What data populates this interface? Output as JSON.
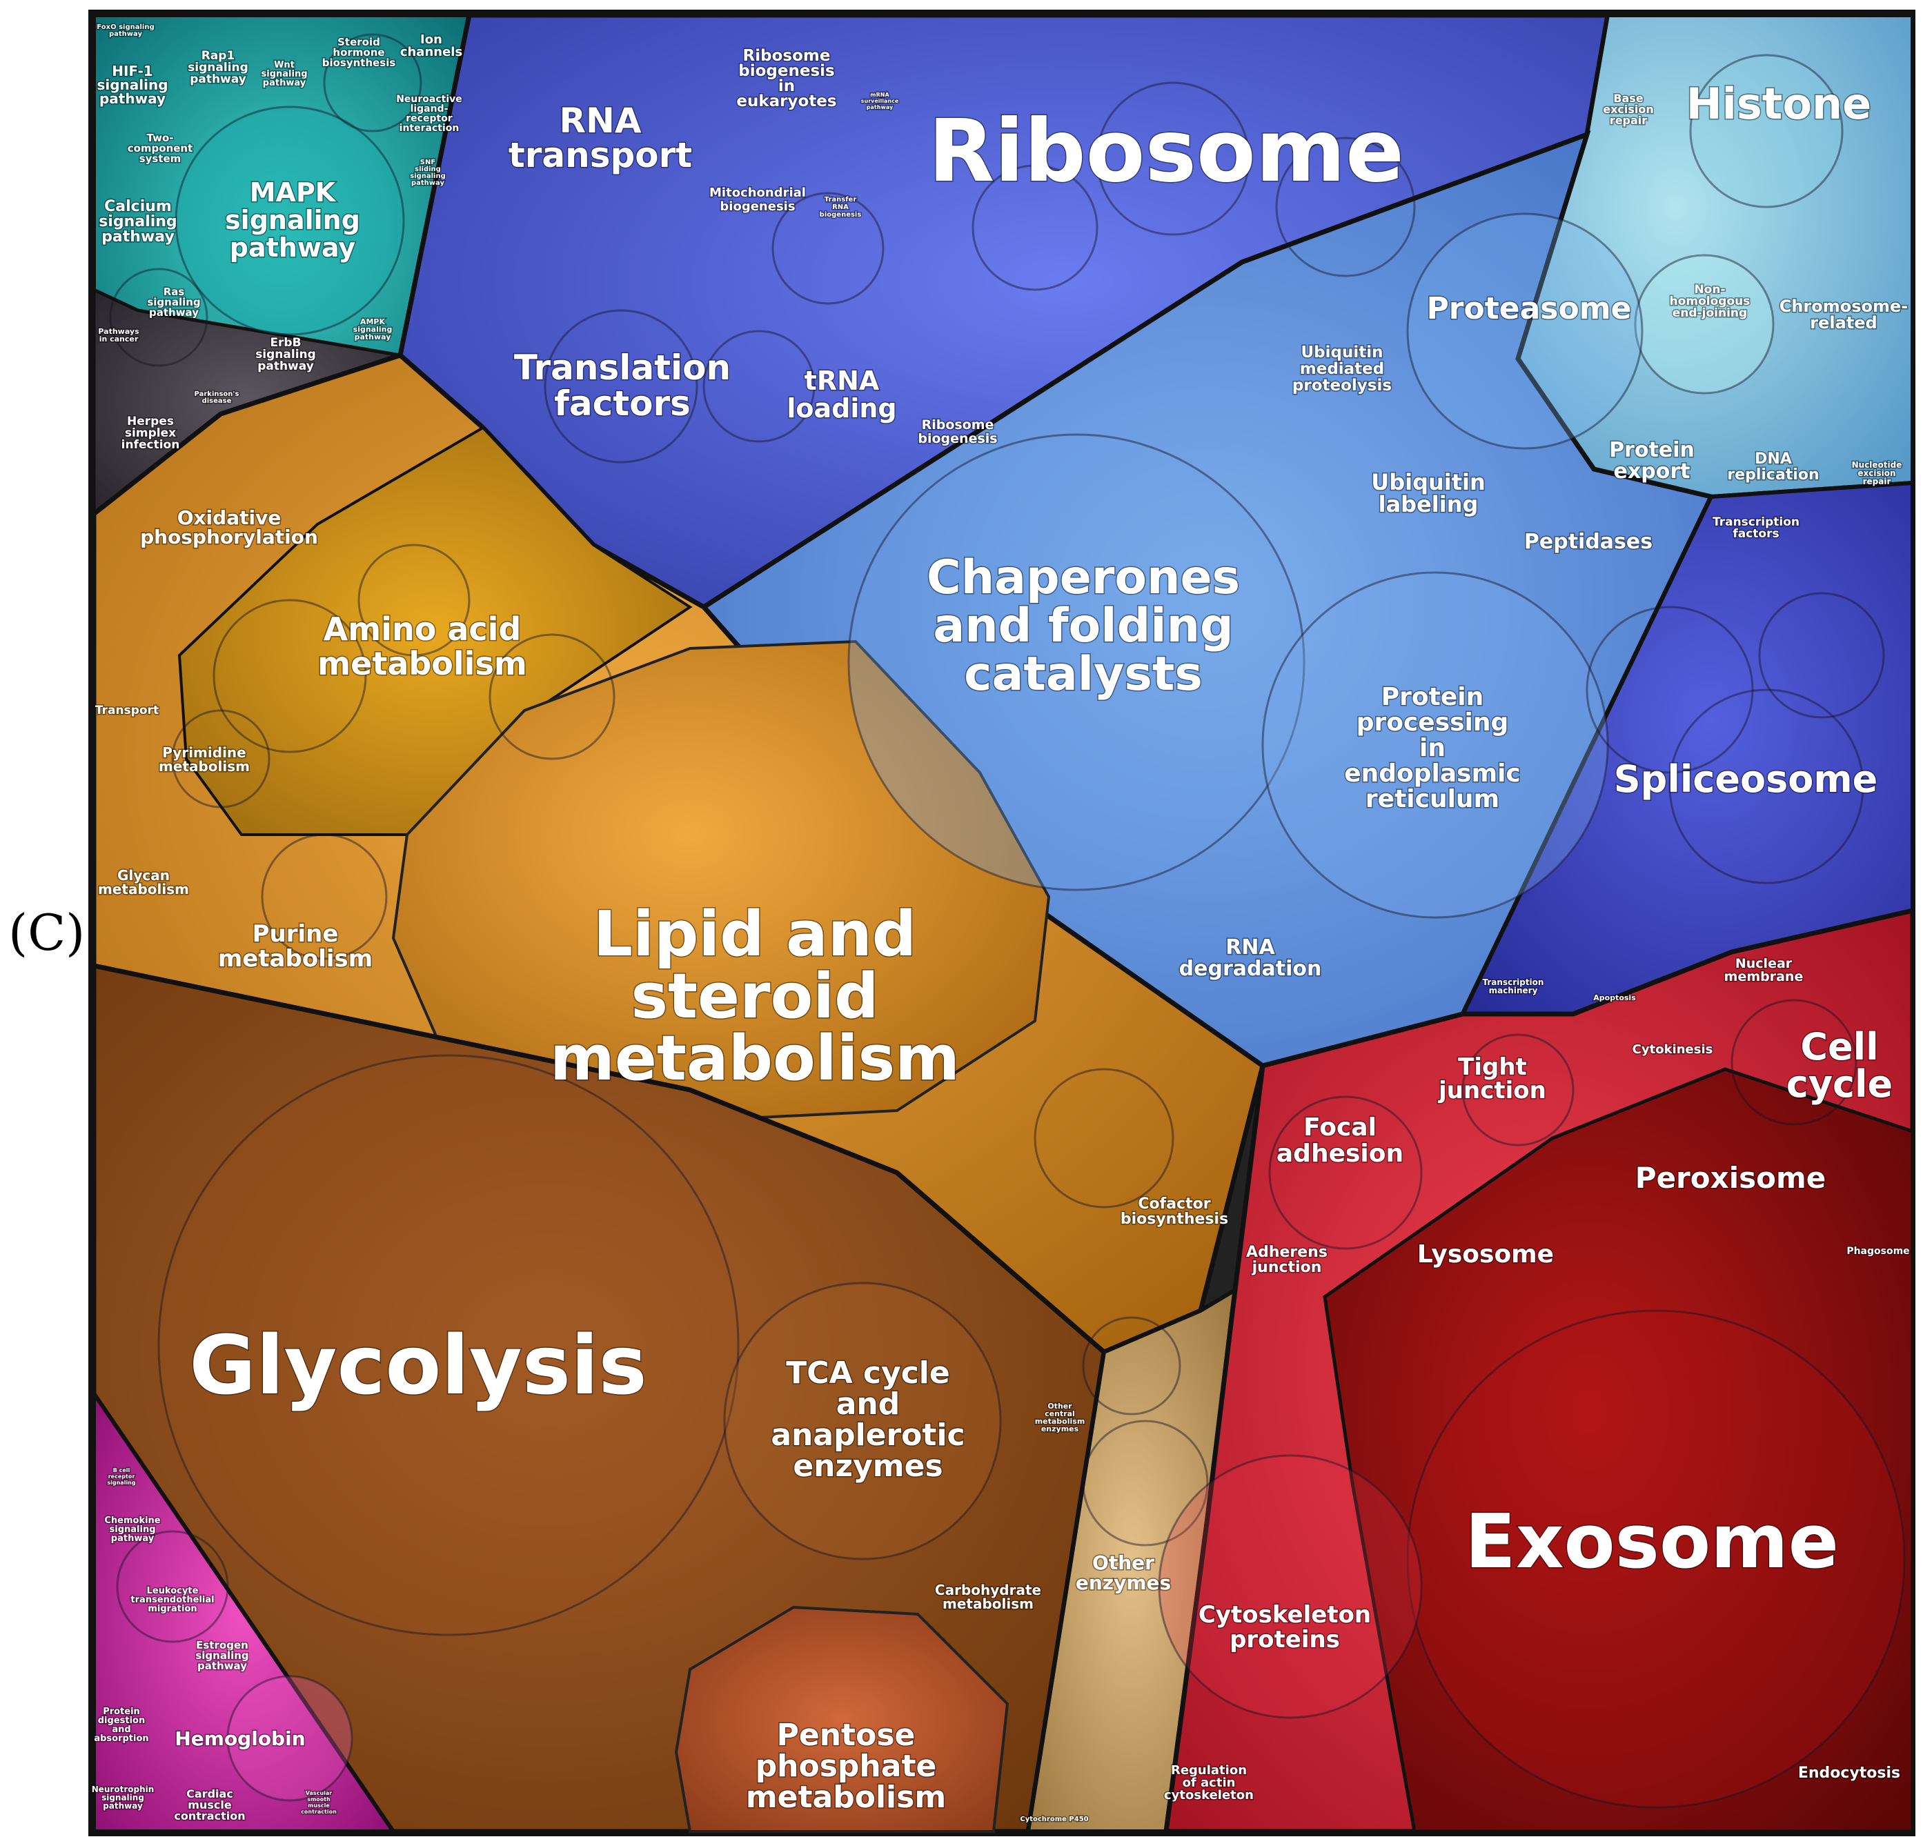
{
  "panel_letter": "(C)",
  "colors": {
    "teal": "#1aa6a6",
    "blue": "#4552c4",
    "light_blue": "#5e8fd6",
    "sky": "#6fb3d8",
    "orange": "#d68a22",
    "brown": "#8e4d18",
    "tan": "#c9a060",
    "red": "#c8202c",
    "dark_red": "#8c0e10",
    "magenta": "#c0209a",
    "dark_gray": "#3a3440",
    "outline": "#111111"
  },
  "labels": {
    "ribosome": "Ribosome",
    "rna_transport": [
      "RNA",
      "transport"
    ],
    "ribosome_biogenesis_eukaryotes": [
      "Ribosome",
      "biogenesis",
      "in",
      "eukaryotes"
    ],
    "mitochondrial_biogenesis": [
      "Mitochondrial",
      "biogenesis"
    ],
    "transfer_rna_biogenesis": [
      "Transfer",
      "RNA",
      "biogenesis"
    ],
    "mrna_surveillance": [
      "mRNA",
      "surveillance",
      "pathway"
    ],
    "translation_factors": [
      "Translation",
      "factors"
    ],
    "trna_loading": [
      "tRNA",
      "loading"
    ],
    "ribosome_biogenesis": [
      "Ribosome",
      "biogenesis"
    ],
    "histone": "Histone",
    "base_excision_repair": [
      "Base",
      "excision",
      "repair"
    ],
    "non_homologous": [
      "Non-",
      "homologous",
      "end-joining"
    ],
    "chromosome_related": [
      "Chromosome-",
      "related"
    ],
    "proteasome": "Proteasome",
    "ubiquitin_mediated": [
      "Ubiquitin",
      "mediated",
      "proteolysis"
    ],
    "ubiquitin_labeling": [
      "Ubiquitin",
      "labeling"
    ],
    "protein_export": [
      "Protein",
      "export"
    ],
    "dna_replication": [
      "DNA",
      "replication"
    ],
    "nucleotide_excision": [
      "Nucleotide",
      "excision",
      "repair"
    ],
    "peptidases": "Peptidases",
    "transcription_factors": [
      "Transcription",
      "factors"
    ],
    "chaperones": [
      "Chaperones",
      "and folding",
      "catalysts"
    ],
    "protein_processing": [
      "Protein",
      "processing",
      "in",
      "endoplasmic",
      "reticulum"
    ],
    "spliceosome": "Spliceosome",
    "rna_degradation": [
      "RNA",
      "degradation"
    ],
    "transcription_machinery": [
      "Transcription",
      "machinery"
    ],
    "foxo": [
      "FoxO signaling",
      "pathway"
    ],
    "hif1": [
      "HIF-1",
      "signaling",
      "pathway"
    ],
    "rap1": [
      "Rap1",
      "signaling",
      "pathway"
    ],
    "wnt": [
      "Wnt",
      "signaling",
      "pathway"
    ],
    "steroid_hormone": [
      "Steroid",
      "hormone",
      "biosynthesis"
    ],
    "ion_channels": [
      "Ion",
      "channels"
    ],
    "two_component": [
      "Two-",
      "component",
      "system"
    ],
    "neuroactive": [
      "Neuroactive",
      "ligand-",
      "receptor",
      "interaction"
    ],
    "calcium": [
      "Calcium",
      "signaling",
      "pathway"
    ],
    "mapk": [
      "MAPK",
      "signaling",
      "pathway"
    ],
    "snf": [
      "SNF",
      "sliding",
      "signaling",
      "pathway"
    ],
    "ras": [
      "Ras",
      "signaling",
      "pathway"
    ],
    "erbb": [
      "ErbB",
      "signaling",
      "pathway"
    ],
    "ampk": [
      "AMPK",
      "signaling",
      "pathway"
    ],
    "pathways_in_cancer": [
      "Pathways",
      "in cancer"
    ],
    "parkinsons": [
      "Parkinson's",
      "disease"
    ],
    "herpes": [
      "Herpes",
      "simplex",
      "infection"
    ],
    "oxidative_phosphorylation": [
      "Oxidative",
      "phosphorylation"
    ],
    "amino_acid": [
      "Amino acid",
      "metabolism"
    ],
    "transport": "Transport",
    "pyrimidine": [
      "Pyrimidine",
      "metabolism"
    ],
    "glycan": [
      "Glycan",
      "metabolism"
    ],
    "purine": [
      "Purine",
      "metabolism"
    ],
    "lipid": [
      "Lipid and",
      "steroid",
      "metabolism"
    ],
    "cofactor": [
      "Cofactor",
      "biosynthesis"
    ],
    "glycolysis": "Glycolysis",
    "tca": [
      "TCA cycle",
      "and",
      "anaplerotic",
      "enzymes"
    ],
    "other_central": [
      "Other",
      "central",
      "metabolism",
      "enzymes"
    ],
    "other_enzymes": [
      "Other",
      "enzymes"
    ],
    "carbohydrate": [
      "Carbohydrate",
      "metabolism"
    ],
    "pentose": [
      "Pentose",
      "phosphate",
      "metabolism"
    ],
    "cytochrome": "Cytochrome P450",
    "nuclear_membrane": [
      "Nuclear",
      "membrane"
    ],
    "apoptosis": "Apoptosis",
    "cytokinesis": "Cytokinesis",
    "cell_cycle": [
      "Cell",
      "cycle"
    ],
    "tight_junction": [
      "Tight",
      "junction"
    ],
    "focal_adhesion": [
      "Focal",
      "adhesion"
    ],
    "peroxisome": "Peroxisome",
    "lysosome": "Lysosome",
    "adherens": [
      "Adherens",
      "junction"
    ],
    "phagosome": "Phagosome",
    "exosome": "Exosome",
    "cytoskeleton": [
      "Cytoskeleton",
      "proteins"
    ],
    "regulation_actin": [
      "Regulation",
      "of actin",
      "cytoskeleton"
    ],
    "endocytosis": "Endocytosis",
    "chemokine": [
      "Chemokine",
      "signaling",
      "pathway"
    ],
    "leukocyte": [
      "Leukocyte",
      "transendothelial",
      "migration"
    ],
    "estrogen": [
      "Estrogen",
      "signaling",
      "pathway"
    ],
    "protein_digestion": [
      "Protein",
      "digestion",
      "and",
      "absorption"
    ],
    "hemoglobin": "Hemoglobin",
    "neurotrophin": [
      "Neurotrophin",
      "signaling",
      "pathway"
    ],
    "cardiac": [
      "Cardiac",
      "muscle",
      "contraction"
    ],
    "b_cell": [
      "B cell",
      "receptor",
      "signaling"
    ],
    "vascular": [
      "Vascular",
      "smooth",
      "muscle",
      "contraction"
    ]
  }
}
